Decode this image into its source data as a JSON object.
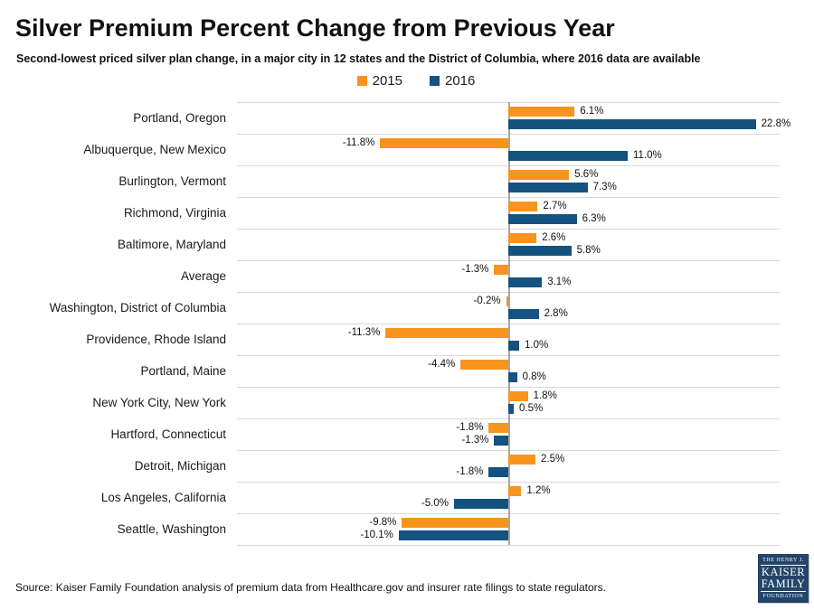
{
  "title": "Silver Premium Percent Change from Previous Year",
  "subtitle": "Second-lowest priced silver plan change, in a major city in 12 states and the District of Columbia, where 2016 data are available",
  "legend": [
    {
      "label": "2015",
      "color": "#F7941E"
    },
    {
      "label": "2016",
      "color": "#14527F"
    }
  ],
  "chart_data": {
    "type": "bar",
    "orientation": "horizontal",
    "title": "Silver Premium Percent Change from Previous Year",
    "subtitle": "Second-lowest priced silver plan change, in a major city in 12 states and the District of Columbia, where 2016 data are available",
    "xlabel": "",
    "ylabel": "",
    "xlim": [
      -25,
      25
    ],
    "grid": "row-separators",
    "legend_position": "top-center",
    "value_label_format": "one_decimal_percent",
    "categories": [
      "Portland, Oregon",
      "Albuquerque, New Mexico",
      "Burlington, Vermont",
      "Richmond, Virginia",
      "Baltimore, Maryland",
      "Average",
      "Washington, District of Columbia",
      "Providence, Rhode Island",
      "Portland, Maine",
      "New York City, New York",
      "Hartford, Connecticut",
      "Detroit, Michigan",
      "Los Angeles, California",
      "Seattle, Washington"
    ],
    "series": [
      {
        "name": "2015",
        "color": "#F7941E",
        "values": [
          6.1,
          -11.8,
          5.6,
          2.7,
          2.6,
          -1.3,
          -0.2,
          -11.3,
          -4.4,
          1.8,
          -1.8,
          2.5,
          1.2,
          -9.8
        ]
      },
      {
        "name": "2016",
        "color": "#14527F",
        "values": [
          22.8,
          11.0,
          7.3,
          6.3,
          5.8,
          3.1,
          2.8,
          1.0,
          0.8,
          0.5,
          -1.3,
          -1.8,
          -5.0,
          -10.1
        ]
      }
    ]
  },
  "source": "Source: Kaiser Family Foundation analysis of premium data from Healthcare.gov and insurer rate filings to state regulators.",
  "logo": {
    "line1": "THE HENRY J.",
    "line2": "KAISER",
    "line3": "FAMILY",
    "line4": "FOUNDATION",
    "bg": "#24456A"
  }
}
